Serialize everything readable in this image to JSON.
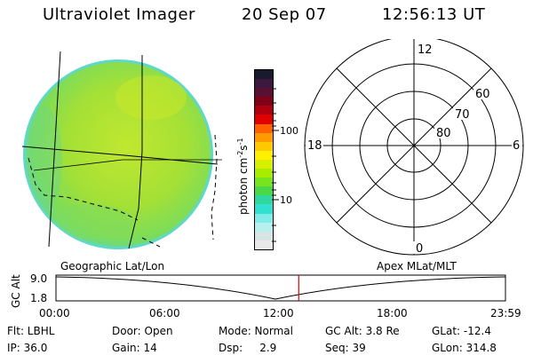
{
  "header": {
    "instrument": "Ultraviolet Imager",
    "date": "20 Sep 07",
    "time": "12:56:13 UT"
  },
  "colorbar": {
    "unit_label": "photon cm",
    "unit_exp1": "-2",
    "unit_mid": "s",
    "unit_exp2": "-1",
    "ticks": [
      "100",
      "10"
    ],
    "colors": [
      "#1a1a2e",
      "#3a1840",
      "#5a1030",
      "#800018",
      "#b00010",
      "#e00000",
      "#ff6000",
      "#ff9a00",
      "#ffc800",
      "#fff000",
      "#d8f000",
      "#a8ec00",
      "#78e420",
      "#4ad848",
      "#30d8a0",
      "#30e0d0",
      "#80ece8",
      "#b8f0f0",
      "#d8e4e4",
      "#e8e8e8"
    ]
  },
  "polar": {
    "labels": {
      "top": "12",
      "bottom": "0",
      "left": "18",
      "right": "6",
      "r60": "60",
      "r70": "70",
      "r80": "80"
    }
  },
  "timeline": {
    "left_title": "Geographic Lat/Lon",
    "right_title": "Apex MLat/MLT",
    "axis_label": "GC Alt",
    "y_ticks": [
      "9.0",
      "1.8"
    ],
    "x_ticks": [
      "00:00",
      "06:00",
      "12:00",
      "18:00",
      "23:59"
    ],
    "marker_color": "#e00000",
    "marker_time_fraction": 0.54
  },
  "info": {
    "rows": [
      [
        "Flt: LBHL",
        "Door: Open",
        "Mode: Normal",
        "GC Alt: 3.8 Re",
        "GLat: -12.4"
      ],
      [
        "IP: 36.0",
        "Gain: 14",
        "Dsp:     2.9",
        "Seq: 39",
        "GLon: 314.8"
      ]
    ]
  },
  "colors": {
    "disk_base": "#a8e030",
    "disk_edge": "#50d8c0"
  }
}
